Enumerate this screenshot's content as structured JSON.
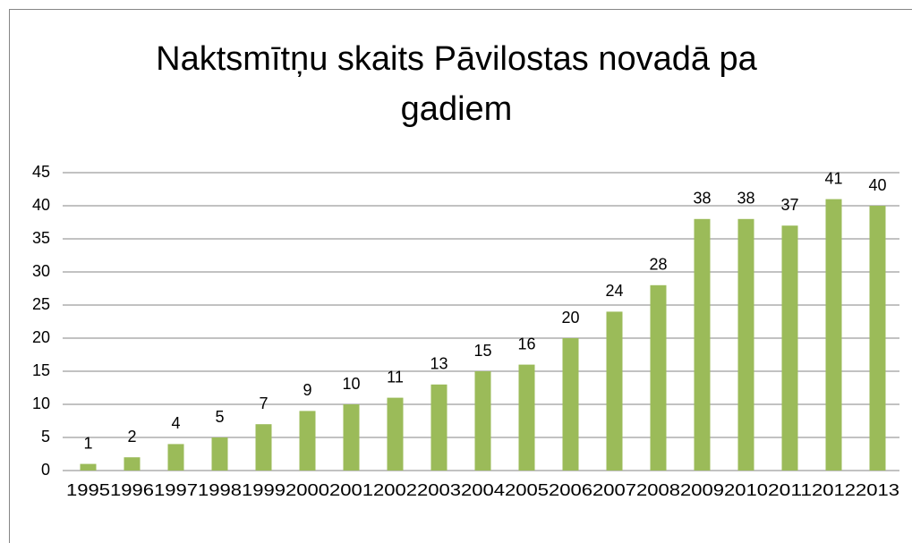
{
  "chart_data": {
    "type": "bar",
    "title": "Naktsmītņu skaits Pāvilostas novadā pa gadiem",
    "categories": [
      "1995",
      "1996",
      "1997",
      "1998",
      "1999",
      "2000",
      "2001",
      "2002",
      "2003",
      "2004",
      "2005",
      "2006",
      "2007",
      "2008",
      "2009",
      "2010",
      "2011",
      "2012",
      "2013"
    ],
    "values": [
      1,
      2,
      4,
      5,
      7,
      9,
      10,
      11,
      13,
      15,
      16,
      20,
      24,
      28,
      38,
      38,
      37,
      41,
      40
    ],
    "color": "#9bbb59",
    "ylim": [
      0,
      45
    ],
    "yticks": [
      0,
      5,
      10,
      15,
      20,
      25,
      30,
      35,
      40,
      45
    ],
    "grid": true
  }
}
